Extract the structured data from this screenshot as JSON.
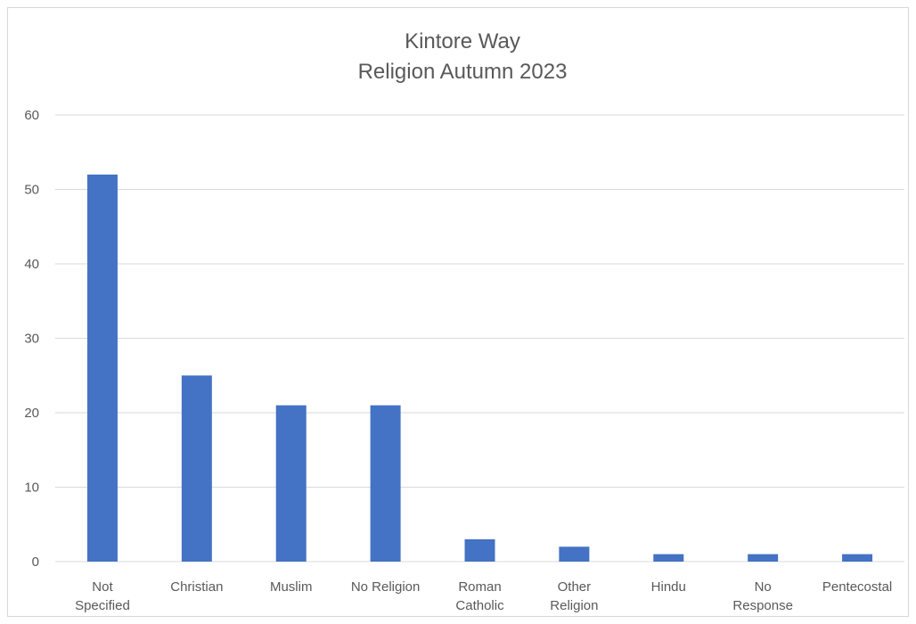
{
  "chart_data": {
    "type": "bar",
    "title_lines": [
      "Kintore Way",
      "Religion Autumn 2023"
    ],
    "categories": [
      [
        "Not",
        "Specified"
      ],
      [
        "Christian"
      ],
      [
        "Muslim"
      ],
      [
        "No Religion"
      ],
      [
        "Roman",
        "Catholic"
      ],
      [
        "Other",
        "Religion"
      ],
      [
        "Hindu"
      ],
      [
        "No",
        "Response"
      ],
      [
        "Pentecostal"
      ]
    ],
    "values": [
      52,
      25,
      21,
      21,
      3,
      2,
      1,
      1,
      1
    ],
    "ylim": [
      0,
      60
    ],
    "yticks": [
      0,
      10,
      20,
      30,
      40,
      50,
      60
    ],
    "xlabel": "",
    "ylabel": "",
    "grid": true,
    "legend": "none",
    "colors": {
      "bar": "#4472C4",
      "grid": "#d9d9d9",
      "text": "#595959"
    }
  }
}
